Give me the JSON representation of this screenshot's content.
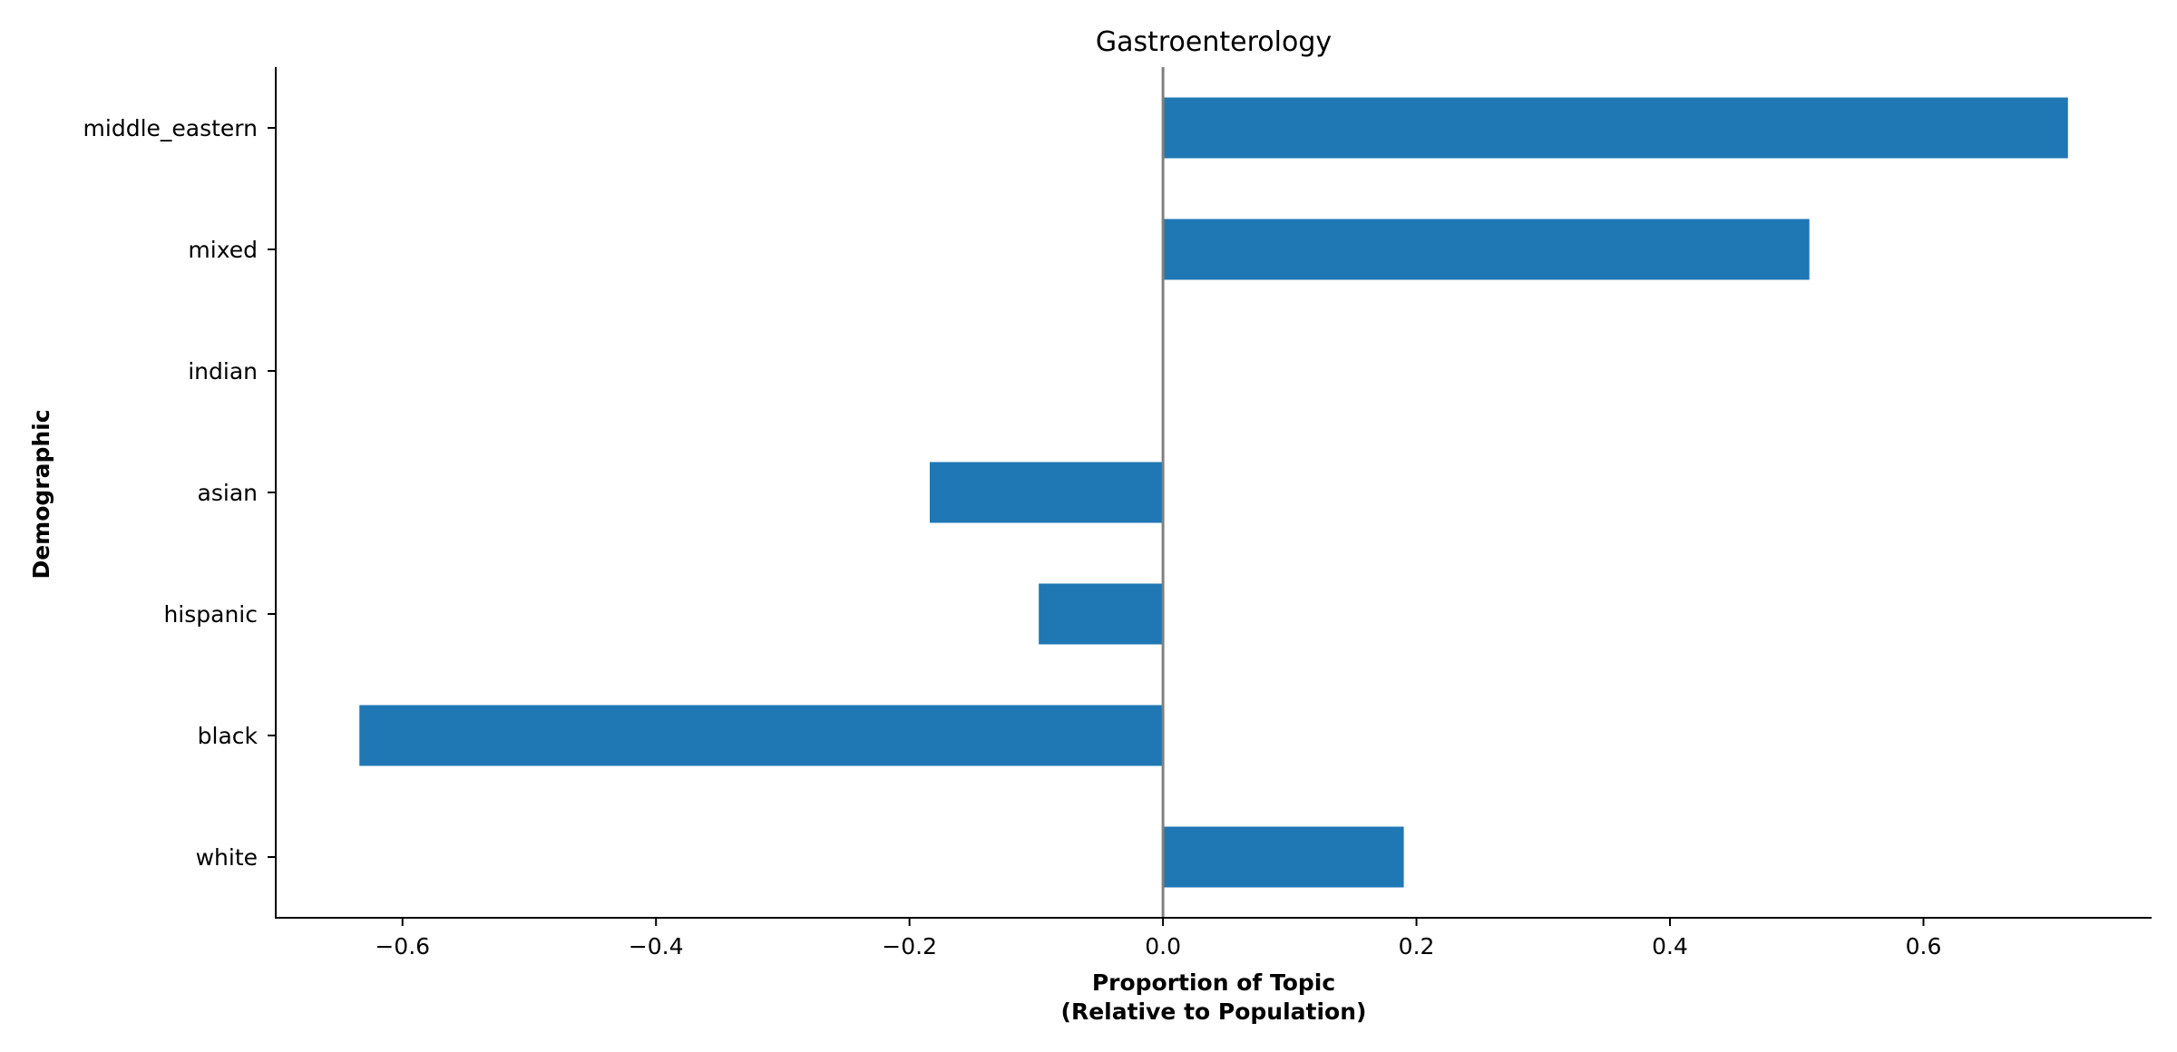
{
  "chart_data": {
    "type": "bar",
    "orientation": "horizontal",
    "title": "Gastroenterology",
    "xlabel_lines": [
      "Proportion of Topic",
      "(Relative to Population)"
    ],
    "ylabel": "Demographic",
    "categories": [
      "middle_eastern",
      "mixed",
      "indian",
      "asian",
      "hispanic",
      "black",
      "white"
    ],
    "values": [
      0.714,
      0.51,
      0.0,
      -0.184,
      -0.098,
      -0.634,
      0.19
    ],
    "xlim": [
      -0.7,
      0.78
    ],
    "xticks": [
      -0.6,
      -0.4,
      -0.2,
      0.0,
      0.2,
      0.4,
      0.6
    ],
    "xtick_labels": [
      "−0.6",
      "−0.4",
      "−0.2",
      "0.0",
      "0.2",
      "0.4",
      "0.6"
    ],
    "zero_line": true,
    "grid": false,
    "legend": "none",
    "colors": {
      "bar": "#1f77b4",
      "zero_line": "#808080",
      "axis": "#000000"
    }
  }
}
